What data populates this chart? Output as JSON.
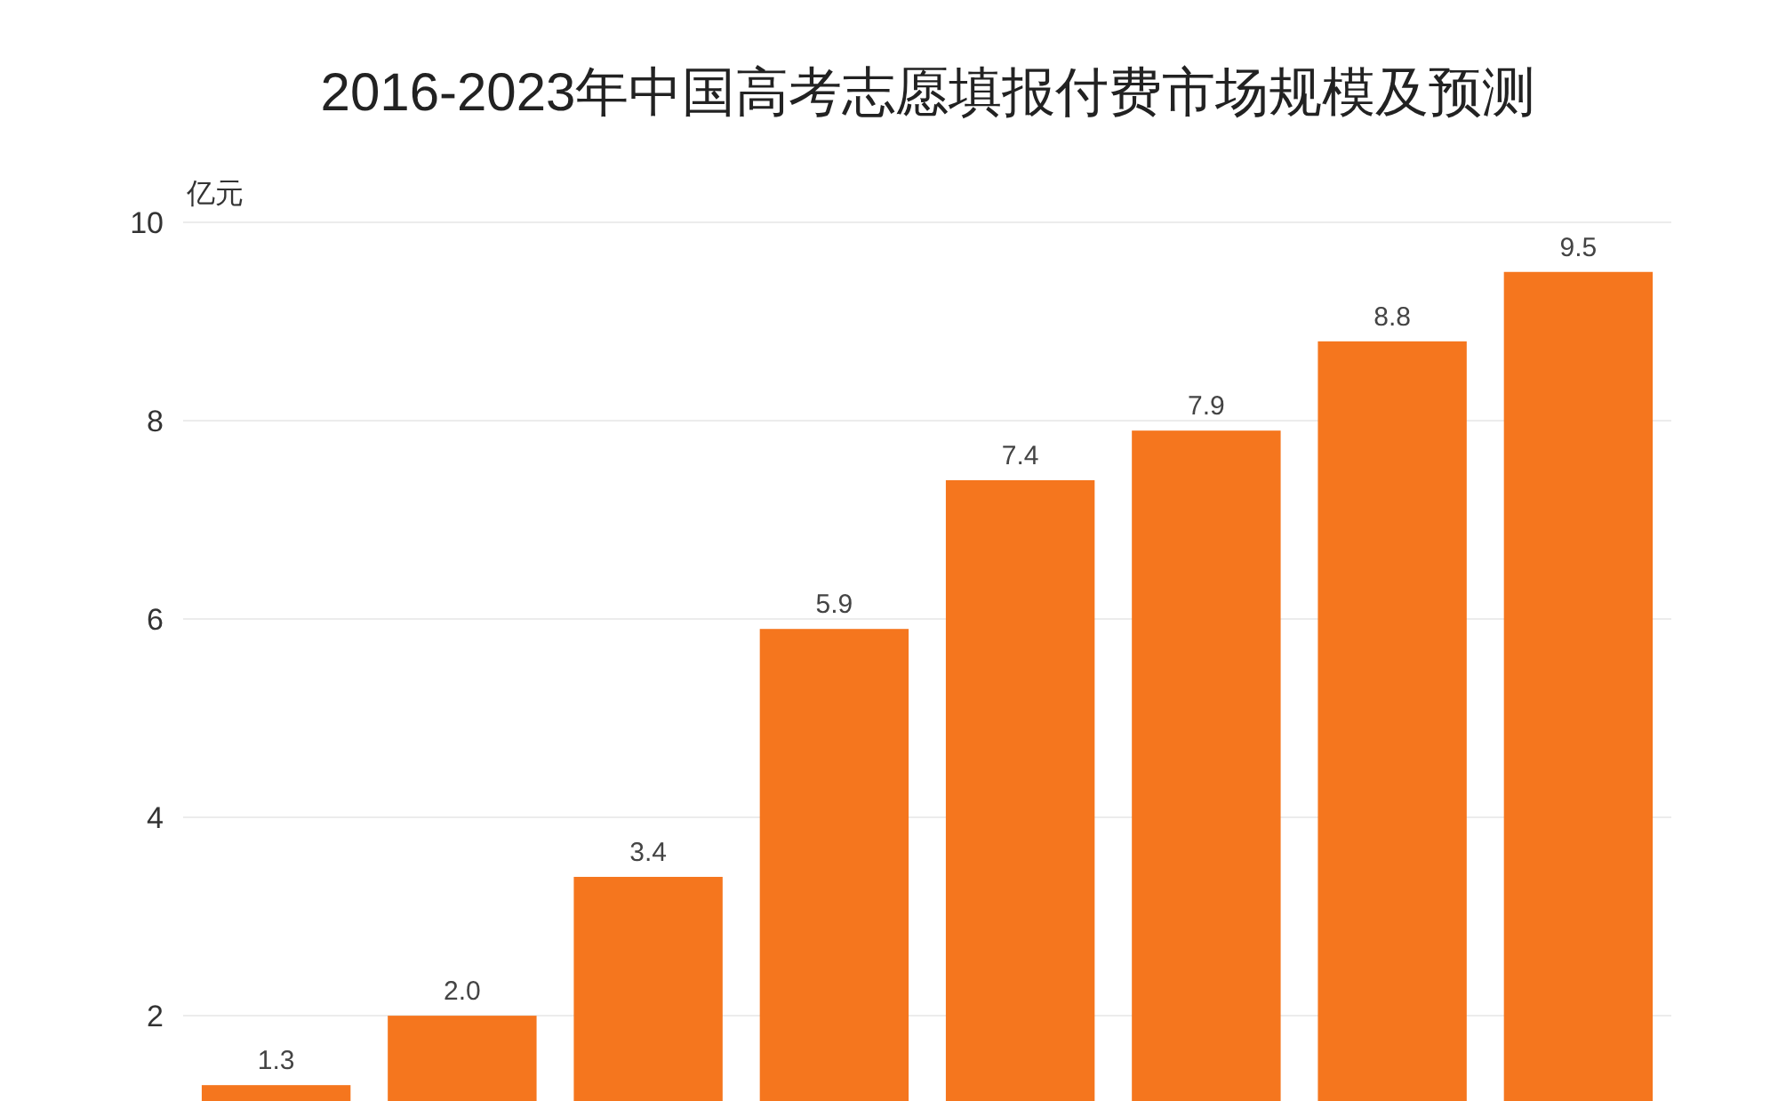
{
  "chart_data": {
    "type": "bar",
    "title": "2016-2023年中国高考志愿填报付费市场规模及预测",
    "ylabel": "亿元",
    "categories": [
      null,
      null,
      null,
      null,
      null,
      null,
      null,
      null
    ],
    "values": [
      1.3,
      2.0,
      3.4,
      5.9,
      7.4,
      7.9,
      8.8,
      9.5
    ],
    "value_labels": [
      "1.3",
      "2.0",
      "3.4",
      "5.9",
      "7.4",
      "7.9",
      "8.8",
      "9.5"
    ],
    "color": "#f5761e",
    "ylim": [
      1.14,
      10
    ],
    "yticks": [
      2,
      4,
      6,
      8,
      10
    ],
    "grid": "y"
  }
}
